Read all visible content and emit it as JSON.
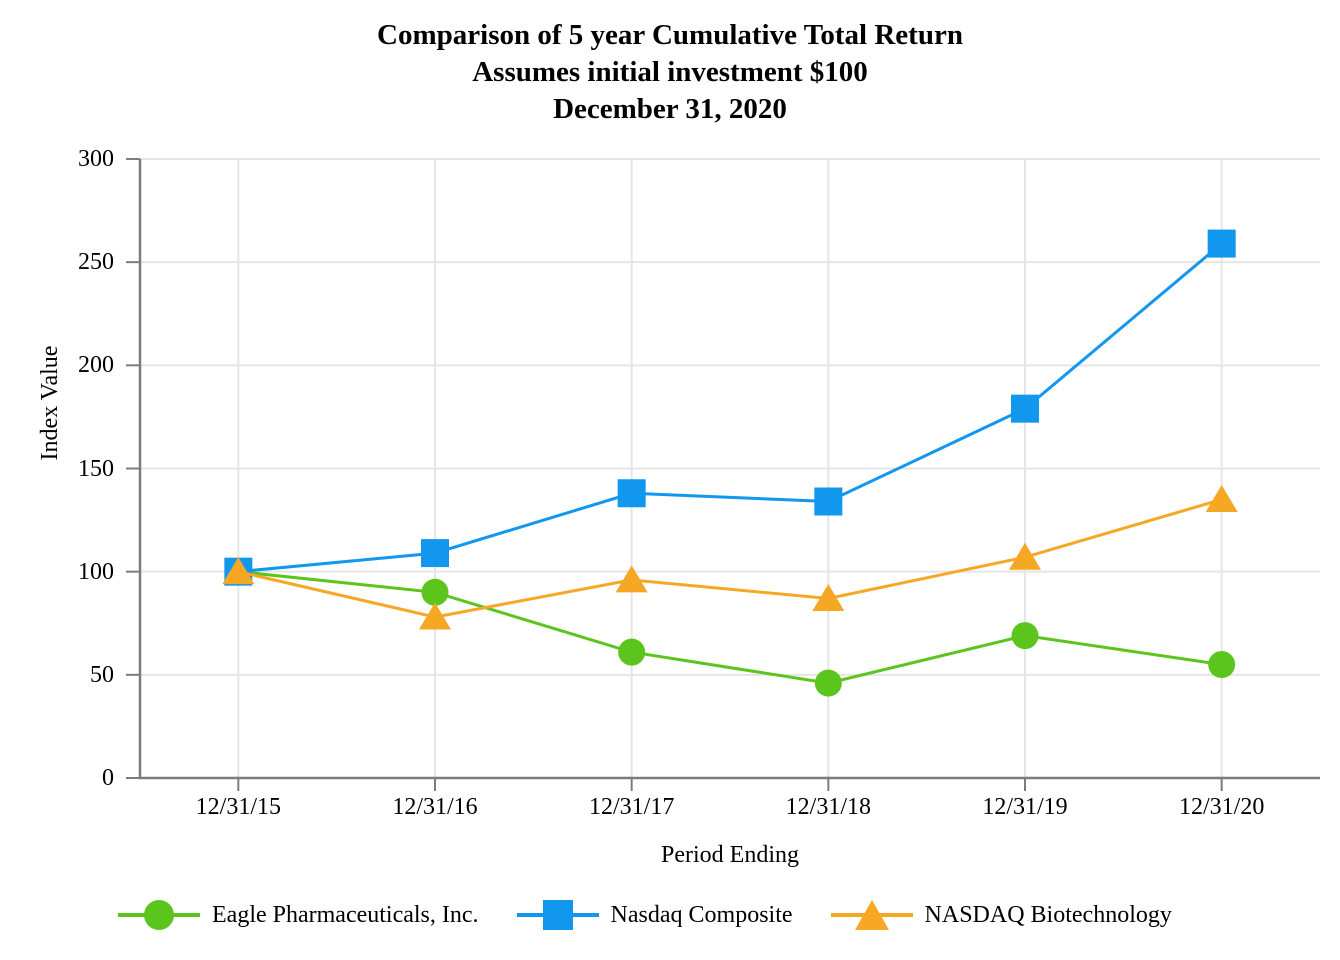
{
  "title": {
    "line1": "Comparison of 5 year Cumulative Total Return",
    "line2": "Assumes initial investment $100",
    "line3": "December 31, 2020"
  },
  "chart_data": {
    "type": "line",
    "title": "Comparison of 5 year Cumulative Total Return | Assumes initial investment $100 | December 31, 2020",
    "categories": [
      "12/31/15",
      "12/31/16",
      "12/31/17",
      "12/31/18",
      "12/31/19",
      "12/31/20"
    ],
    "series": [
      {
        "name": "Eagle Pharmaceuticals, Inc.",
        "marker": "circle",
        "color": "#5bc41d",
        "values": [
          100,
          90,
          61,
          46,
          69,
          55
        ]
      },
      {
        "name": "Nasdaq Composite",
        "marker": "square",
        "color": "#1297ee",
        "values": [
          100,
          109,
          138,
          134,
          179,
          259
        ]
      },
      {
        "name": "NASDAQ Biotechnology",
        "marker": "triangle",
        "color": "#f6a724",
        "values": [
          100,
          78,
          96,
          87,
          107,
          135
        ]
      }
    ],
    "xlabel": "Period Ending",
    "ylabel": "Index Value",
    "ylim": [
      0,
      300
    ],
    "yticks": [
      0,
      50,
      100,
      150,
      200,
      250,
      300
    ],
    "grid": true,
    "legend_position": "bottom"
  },
  "colors": {
    "background": "#ffffff",
    "text": "#000000",
    "gridline": "#e5e5e5",
    "axis": "#7c7c7c"
  }
}
